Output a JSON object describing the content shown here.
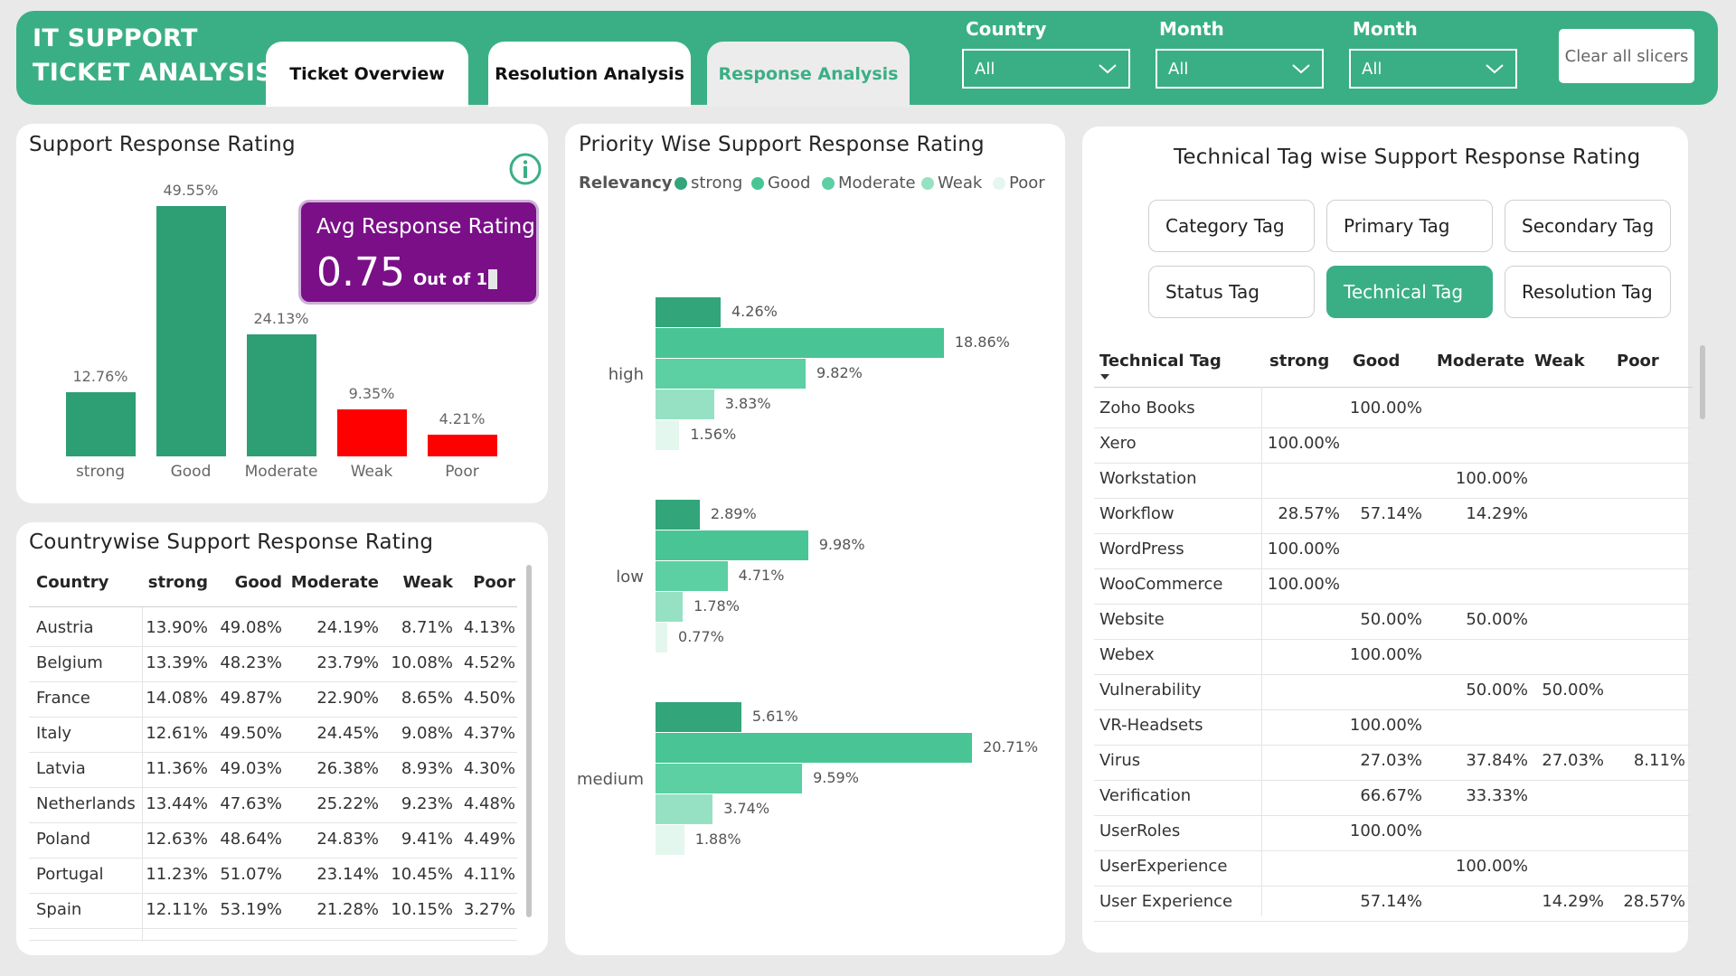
{
  "app": {
    "title_line1": "IT SUPPORT",
    "title_line2": "TICKET ANALYSIS"
  },
  "tabs": [
    {
      "label": "Ticket Overview",
      "active": false
    },
    {
      "label": "Resolution Analysis",
      "active": false
    },
    {
      "label": "Response Analysis",
      "active": true
    }
  ],
  "slicers": [
    {
      "label": "Country",
      "value": "All"
    },
    {
      "label": "Month",
      "value": "All"
    },
    {
      "label": "Month",
      "value": "All"
    }
  ],
  "clear_label": "Clear all slicers",
  "colors": {
    "accent": "#3aaf85",
    "bar_green": "#2e9e74",
    "bar_red": "#ff0000",
    "kpi_bg": "#7a0f88",
    "strong": "#33a57a",
    "good": "#49c595",
    "moderate": "#5ccfa3",
    "weak": "#96e1c4",
    "poor": "#e4f7ef"
  },
  "support_rating": {
    "title": "Support Response Rating",
    "info_icon": "info-icon",
    "kpi": {
      "title": "Avg Response Rating",
      "value": "0.75",
      "sub": "Out of 1"
    }
  },
  "country_table": {
    "title": "Countrywise Support Response Rating",
    "columns": [
      "Country",
      "strong",
      "Good",
      "Moderate",
      "Weak",
      "Poor"
    ],
    "rows": [
      [
        "Austria",
        "13.90%",
        "49.08%",
        "24.19%",
        "8.71%",
        "4.13%"
      ],
      [
        "Belgium",
        "13.39%",
        "48.23%",
        "23.79%",
        "10.08%",
        "4.52%"
      ],
      [
        "France",
        "14.08%",
        "49.87%",
        "22.90%",
        "8.65%",
        "4.50%"
      ],
      [
        "Italy",
        "12.61%",
        "49.50%",
        "24.45%",
        "9.08%",
        "4.37%"
      ],
      [
        "Latvia",
        "11.36%",
        "49.03%",
        "26.38%",
        "8.93%",
        "4.30%"
      ],
      [
        "Netherlands",
        "13.44%",
        "47.63%",
        "25.22%",
        "9.23%",
        "4.48%"
      ],
      [
        "Poland",
        "12.63%",
        "48.64%",
        "24.83%",
        "9.41%",
        "4.49%"
      ],
      [
        "Portugal",
        "11.23%",
        "51.07%",
        "23.14%",
        "10.45%",
        "4.11%"
      ],
      [
        "Spain",
        "12.11%",
        "53.19%",
        "21.28%",
        "10.15%",
        "3.27%"
      ]
    ]
  },
  "priority_chart": {
    "title": "Priority Wise Support Response Rating",
    "legend_title": "Relevancy",
    "legend": [
      "strong",
      "Good",
      "Moderate",
      "Weak",
      "Poor"
    ],
    "groups": [
      "high",
      "low",
      "medium"
    ]
  },
  "tag_section": {
    "title": "Technical Tag wise Support Response Rating",
    "buttons": [
      {
        "label": "Category Tag",
        "active": false
      },
      {
        "label": "Primary Tag",
        "active": false
      },
      {
        "label": "Secondary Tag",
        "active": false
      },
      {
        "label": "Status Tag",
        "active": false
      },
      {
        "label": "Technical Tag",
        "active": true
      },
      {
        "label": "Resolution Tag",
        "active": false
      }
    ],
    "columns": [
      "Technical Tag",
      "strong",
      "Good",
      "Moderate",
      "Weak",
      "Poor"
    ],
    "rows": [
      [
        "Zoho Books",
        "",
        "100.00%",
        "",
        "",
        ""
      ],
      [
        "Xero",
        "100.00%",
        "",
        "",
        "",
        ""
      ],
      [
        "Workstation",
        "",
        "",
        "100.00%",
        "",
        ""
      ],
      [
        "Workflow",
        "28.57%",
        "57.14%",
        "14.29%",
        "",
        ""
      ],
      [
        "WordPress",
        "100.00%",
        "",
        "",
        "",
        ""
      ],
      [
        "WooCommerce",
        "100.00%",
        "",
        "",
        "",
        ""
      ],
      [
        "Website",
        "",
        "50.00%",
        "50.00%",
        "",
        ""
      ],
      [
        "Webex",
        "",
        "100.00%",
        "",
        "",
        ""
      ],
      [
        "Vulnerability",
        "",
        "",
        "50.00%",
        "50.00%",
        ""
      ],
      [
        "VR-Headsets",
        "",
        "100.00%",
        "",
        "",
        ""
      ],
      [
        "Virus",
        "",
        "27.03%",
        "37.84%",
        "27.03%",
        "8.11%"
      ],
      [
        "Verification",
        "",
        "66.67%",
        "33.33%",
        "",
        ""
      ],
      [
        "UserRoles",
        "",
        "100.00%",
        "",
        "",
        ""
      ],
      [
        "UserExperience",
        "",
        "",
        "100.00%",
        "",
        ""
      ],
      [
        "User Experience",
        "",
        "57.14%",
        "",
        "14.29%",
        "28.57%"
      ]
    ]
  },
  "chart_data": [
    {
      "type": "bar",
      "title": "Support Response Rating",
      "categories": [
        "strong",
        "Good",
        "Moderate",
        "Weak",
        "Poor"
      ],
      "values": [
        12.76,
        49.55,
        24.13,
        9.35,
        4.21
      ],
      "labels": [
        "12.76%",
        "49.55%",
        "24.13%",
        "9.35%",
        "4.21%"
      ],
      "bar_colors": [
        "#2e9e74",
        "#2e9e74",
        "#2e9e74",
        "#ff0000",
        "#ff0000"
      ],
      "ylim": [
        0,
        50
      ],
      "grid": false
    },
    {
      "type": "bar",
      "orientation": "horizontal",
      "title": "Priority Wise Support Response Rating",
      "categories": [
        "high",
        "low",
        "medium"
      ],
      "series": [
        {
          "name": "strong",
          "values": [
            4.26,
            2.89,
            5.61
          ],
          "labels": [
            "4.26%",
            "2.89%",
            "5.61%"
          ]
        },
        {
          "name": "Good",
          "values": [
            18.86,
            9.98,
            20.71
          ],
          "labels": [
            "18.86%",
            "9.98%",
            "20.71%"
          ]
        },
        {
          "name": "Moderate",
          "values": [
            9.82,
            4.71,
            9.59
          ],
          "labels": [
            "9.82%",
            "4.71%",
            "9.59%"
          ]
        },
        {
          "name": "Weak",
          "values": [
            3.83,
            1.78,
            3.74
          ],
          "labels": [
            "3.83%",
            "1.78%",
            "3.74%"
          ]
        },
        {
          "name": "Poor",
          "values": [
            1.56,
            0.77,
            1.88
          ],
          "labels": [
            "1.56%",
            "0.77%",
            "1.88%"
          ]
        }
      ],
      "legend_position": "top-left",
      "grid": false
    }
  ]
}
